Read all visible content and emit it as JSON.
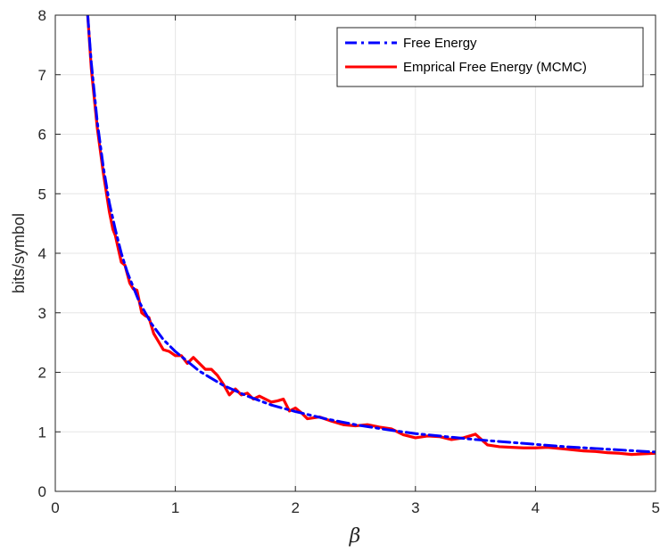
{
  "chart_data": {
    "type": "line",
    "title": "",
    "xlabel": "β",
    "ylabel": "bits/symbol",
    "xlim": [
      0,
      5
    ],
    "ylim": [
      0,
      8
    ],
    "xticks": [
      "0",
      "1",
      "2",
      "3",
      "4",
      "5"
    ],
    "yticks": [
      "0",
      "1",
      "2",
      "3",
      "4",
      "5",
      "6",
      "7",
      "8"
    ],
    "grid": true,
    "legend_position": "top-right",
    "series": [
      {
        "name": "Free Energy",
        "color": "#0000ff",
        "style": "dash-dot",
        "x": [
          0.27,
          0.3,
          0.35,
          0.4,
          0.45,
          0.5,
          0.55,
          0.6,
          0.7,
          0.8,
          0.9,
          1.0,
          1.2,
          1.4,
          1.6,
          1.8,
          2.0,
          2.25,
          2.5,
          2.75,
          3.0,
          3.25,
          3.5,
          3.75,
          4.0,
          4.25,
          4.5,
          4.75,
          5.0
        ],
        "y": [
          8.0,
          7.2,
          6.2,
          5.45,
          4.85,
          4.4,
          4.0,
          3.68,
          3.18,
          2.82,
          2.55,
          2.35,
          2.02,
          1.78,
          1.6,
          1.45,
          1.34,
          1.22,
          1.12,
          1.04,
          0.97,
          0.92,
          0.87,
          0.83,
          0.79,
          0.75,
          0.72,
          0.69,
          0.66
        ]
      },
      {
        "name": "Emprical Free Energy (MCMC)",
        "color": "#ff0000",
        "style": "solid",
        "x": [
          0.27,
          0.3,
          0.35,
          0.4,
          0.45,
          0.48,
          0.5,
          0.55,
          0.58,
          0.62,
          0.65,
          0.68,
          0.72,
          0.75,
          0.78,
          0.82,
          0.85,
          0.9,
          0.95,
          1.0,
          1.05,
          1.1,
          1.15,
          1.2,
          1.25,
          1.3,
          1.35,
          1.4,
          1.45,
          1.5,
          1.55,
          1.6,
          1.65,
          1.7,
          1.75,
          1.8,
          1.85,
          1.9,
          1.95,
          2.0,
          2.05,
          2.1,
          2.2,
          2.3,
          2.4,
          2.5,
          2.6,
          2.7,
          2.8,
          2.9,
          3.0,
          3.1,
          3.2,
          3.3,
          3.4,
          3.5,
          3.6,
          3.7,
          3.8,
          3.9,
          4.0,
          4.1,
          4.2,
          4.3,
          4.4,
          4.5,
          4.6,
          4.7,
          4.8,
          4.9,
          5.0
        ],
        "y": [
          8.0,
          7.1,
          6.1,
          5.35,
          4.7,
          4.4,
          4.3,
          3.85,
          3.8,
          3.5,
          3.4,
          3.38,
          3.0,
          2.95,
          2.92,
          2.65,
          2.55,
          2.38,
          2.35,
          2.28,
          2.28,
          2.15,
          2.25,
          2.15,
          2.05,
          2.05,
          1.95,
          1.8,
          1.62,
          1.72,
          1.62,
          1.65,
          1.55,
          1.6,
          1.55,
          1.5,
          1.52,
          1.55,
          1.35,
          1.4,
          1.32,
          1.22,
          1.25,
          1.18,
          1.12,
          1.1,
          1.12,
          1.08,
          1.05,
          0.95,
          0.9,
          0.93,
          0.92,
          0.87,
          0.9,
          0.96,
          0.78,
          0.75,
          0.74,
          0.73,
          0.73,
          0.74,
          0.72,
          0.7,
          0.68,
          0.67,
          0.65,
          0.64,
          0.62,
          0.63,
          0.64
        ]
      }
    ]
  }
}
